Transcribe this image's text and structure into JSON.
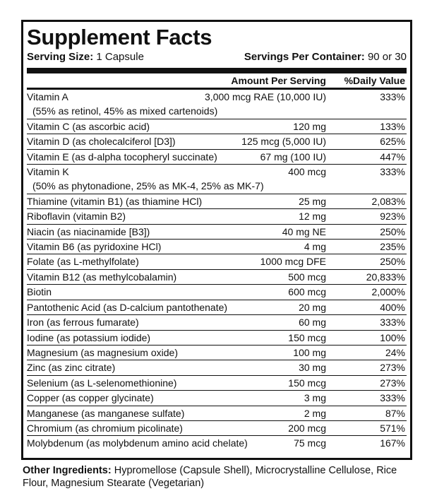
{
  "title": "Supplement Facts",
  "serving_size": {
    "label": "Serving Size:",
    "value": "1 Capsule"
  },
  "servings_per_container": {
    "label": "Servings Per Container:",
    "value": "90 or 30"
  },
  "header": {
    "amount": "Amount Per Serving",
    "daily_value": "%Daily Value"
  },
  "rows": [
    {
      "name": "Vitamin A",
      "amount": "3,000 mcg RAE (10,000 IU)",
      "daily_value": "333%",
      "note": "(55% as retinol, 45% as mixed cartenoids)"
    },
    {
      "name": "Vitamin C (as ascorbic acid)",
      "amount": "120 mg",
      "daily_value": "133%"
    },
    {
      "name": "Vitamin D (as cholecalciferol [D3])",
      "amount": "125 mcg (5,000 IU)",
      "daily_value": "625%"
    },
    {
      "name": "Vitamin E (as d-alpha tocopheryl succinate)",
      "amount": "67 mg (100 IU)",
      "daily_value": "447%"
    },
    {
      "name": "Vitamin K",
      "amount": "400 mcg",
      "daily_value": "333%",
      "note": "(50% as phytonadione, 25% as MK-4, 25% as MK-7)"
    },
    {
      "name": "Thiamine (vitamin B1) (as thiamine HCl)",
      "amount": "25 mg",
      "daily_value": "2,083%"
    },
    {
      "name": "Riboflavin (vitamin B2)",
      "amount": "12 mg",
      "daily_value": "923%"
    },
    {
      "name": "Niacin (as niacinamide [B3])",
      "amount": "40 mg NE",
      "daily_value": "250%"
    },
    {
      "name": "Vitamin B6 (as pyridoxine HCl)",
      "amount": "4 mg",
      "daily_value": "235%"
    },
    {
      "name": "Folate (as L-methylfolate)",
      "amount": "1000 mcg DFE",
      "daily_value": "250%"
    },
    {
      "name": "Vitamin B12 (as methylcobalamin)",
      "amount": "500 mcg",
      "daily_value": "20,833%"
    },
    {
      "name": "Biotin",
      "amount": "600 mcg",
      "daily_value": "2,000%"
    },
    {
      "name": "Pantothenic Acid (as D-calcium pantothenate)",
      "amount": "20 mg",
      "daily_value": "400%"
    },
    {
      "name": "Iron (as ferrous fumarate)",
      "amount": "60 mg",
      "daily_value": "333%"
    },
    {
      "name": "Iodine (as potassium iodide)",
      "amount": "150 mcg",
      "daily_value": "100%"
    },
    {
      "name": "Magnesium (as magnesium oxide)",
      "amount": "100 mg",
      "daily_value": "24%"
    },
    {
      "name": "Zinc (as zinc citrate)",
      "amount": "30 mg",
      "daily_value": "273%"
    },
    {
      "name": "Selenium (as L-selenomethionine)",
      "amount": "150 mcg",
      "daily_value": "273%"
    },
    {
      "name": "Copper (as copper glycinate)",
      "amount": "3 mg",
      "daily_value": "333%"
    },
    {
      "name": "Manganese (as manganese sulfate)",
      "amount": "2 mg",
      "daily_value": "87%"
    },
    {
      "name": "Chromium (as chromium picolinate)",
      "amount": "200 mcg",
      "daily_value": "571%"
    },
    {
      "name": "Molybdenum (as molybdenum amino acid chelate)",
      "amount": "75 mcg",
      "daily_value": "167%"
    }
  ],
  "other_ingredients": {
    "label": "Other Ingredients:",
    "text": "Hypromellose (Capsule Shell), Microcrystalline Cellulose, Rice Flour, Magnesium Stearate (Vegetarian)"
  }
}
